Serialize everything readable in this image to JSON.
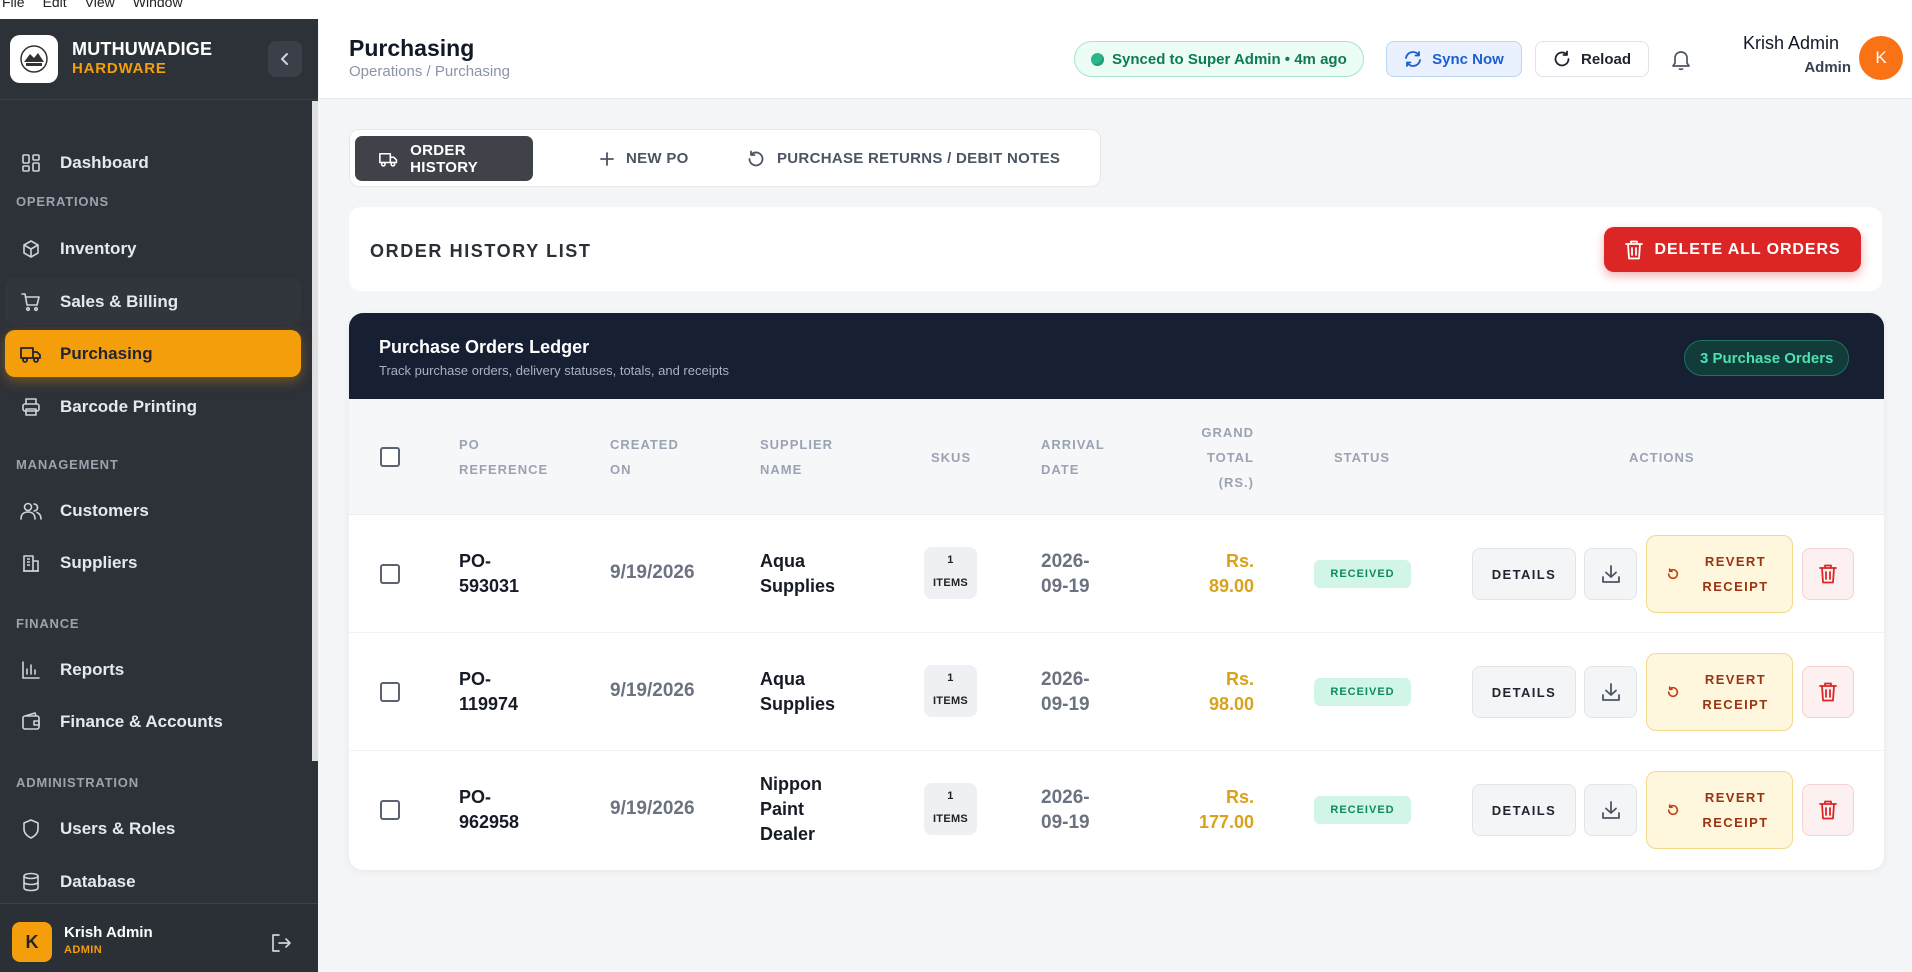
{
  "os_menu": [
    "File",
    "Edit",
    "View",
    "Window"
  ],
  "brand": {
    "name": "MUTHUWADIGE",
    "sub": "HARDWARE"
  },
  "sidebar": {
    "dashboard": "Dashboard",
    "sections": {
      "operations": "OPERATIONS",
      "management": "MANAGEMENT",
      "finance": "FINANCE",
      "administration": "ADMINISTRATION"
    },
    "items": {
      "inventory": "Inventory",
      "sales": "Sales & Billing",
      "purchasing": "Purchasing",
      "barcode": "Barcode Printing",
      "customers": "Customers",
      "suppliers": "Suppliers",
      "reports": "Reports",
      "finance": "Finance & Accounts",
      "users": "Users & Roles",
      "database": "Database"
    },
    "user": {
      "initial": "K",
      "name": "Krish Admin",
      "role": "ADMIN"
    }
  },
  "header": {
    "title": "Purchasing",
    "breadcrumb": "Operations / Purchasing",
    "sync_status": "Synced to Super Admin • 4m ago",
    "sync_now": "Sync Now",
    "reload": "Reload",
    "user_name": "Krish Admin",
    "user_role": "Admin",
    "user_initial": "K"
  },
  "tabs": {
    "order_history": "ORDER HISTORY",
    "new_po": "NEW PO",
    "returns": "PURCHASE RETURNS / DEBIT NOTES"
  },
  "list_card": {
    "title": "ORDER HISTORY LIST",
    "delete_all": "DELETE ALL ORDERS"
  },
  "ledger": {
    "title": "Purchase Orders Ledger",
    "subtitle": "Track purchase orders, delivery statuses, totals, and receipts",
    "count_badge": "3 Purchase Orders",
    "columns": {
      "po_ref": [
        "PO",
        "REFERENCE"
      ],
      "created": [
        "CREATED",
        "ON"
      ],
      "supplier": [
        "SUPPLIER",
        "NAME"
      ],
      "skus": [
        "SKUS"
      ],
      "arrival": [
        "ARRIVAL",
        "DATE"
      ],
      "total": [
        "GRAND",
        "TOTAL",
        "(RS.)"
      ],
      "status": [
        "STATUS"
      ],
      "actions": [
        "ACTIONS"
      ]
    },
    "rows": [
      {
        "po": [
          "PO-",
          "593031"
        ],
        "created": "9/19/2026",
        "supplier": [
          "Aqua",
          "Supplies"
        ],
        "sku_count": "1",
        "sku_unit": "ITEMS",
        "arrival": [
          "2026-",
          "09-19"
        ],
        "total": [
          "Rs.",
          "89.00"
        ],
        "status": "RECEIVED",
        "details": "DETAILS",
        "revert": [
          "REVERT",
          "RECEIPT"
        ]
      },
      {
        "po": [
          "PO-",
          "119974"
        ],
        "created": "9/19/2026",
        "supplier": [
          "Aqua",
          "Supplies"
        ],
        "sku_count": "1",
        "sku_unit": "ITEMS",
        "arrival": [
          "2026-",
          "09-19"
        ],
        "total": [
          "Rs.",
          "98.00"
        ],
        "status": "RECEIVED",
        "details": "DETAILS",
        "revert": [
          "REVERT",
          "RECEIPT"
        ]
      },
      {
        "po": [
          "PO-",
          "962958"
        ],
        "created": "9/19/2026",
        "supplier": [
          "Nippon",
          "Paint",
          "Dealer"
        ],
        "sku_count": "1",
        "sku_unit": "ITEMS",
        "arrival": [
          "2026-",
          "09-19"
        ],
        "total": [
          "Rs.",
          "177.00"
        ],
        "status": "RECEIVED",
        "details": "DETAILS",
        "revert": [
          "REVERT",
          "RECEIPT"
        ]
      }
    ]
  },
  "colors": {
    "accent": "#f59e0b",
    "sidebar_bg": "#2d3138",
    "ledger_header_bg": "#172033",
    "danger": "#dc2626",
    "success": "#0f8a5f"
  }
}
